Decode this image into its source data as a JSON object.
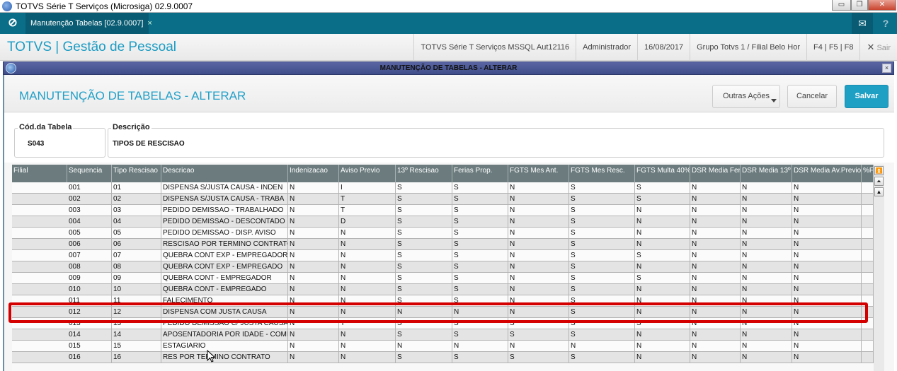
{
  "window": {
    "title": "TOTVS Série T Serviços (Microsiga) 02.9.0007",
    "minimize": "▭",
    "restore": "❐",
    "close": "✕"
  },
  "topbar": {
    "tab_label": "Manutenção Tabelas [02.9.0007]",
    "tab_close": "×",
    "mail_icon": "✉",
    "help_icon": "?",
    "home_icon": "⊘"
  },
  "header": {
    "app_title": "TOTVS | Gestão de Pessoal",
    "environment": "TOTVS Série T Serviços MSSQL Aut12116",
    "user": "Administrador",
    "date": "16/08/2017",
    "branch": "Grupo Totvs 1 / Filial Belo Hor",
    "shortcuts": "F4 | F5 | F8",
    "exit_icon": "✕",
    "exit_label": "Sair"
  },
  "dialog": {
    "title": "MANUTENÇÃO DE TABELAS - ALTERAR",
    "close": "×"
  },
  "page": {
    "title": "MANUTENÇÃO DE TABELAS - ALTERAR",
    "other_actions": "Outras Ações",
    "cancel": "Cancelar",
    "save": "Salvar"
  },
  "form": {
    "code_label": "Cód.da Tabela",
    "code_value": "S043",
    "desc_label": "Descrição",
    "desc_value": "TIPOS DE RESCISAO"
  },
  "grid": {
    "columns": [
      "Filial",
      "Sequencia",
      "Tipo Rescisao",
      "Descricao",
      "Indenizacao",
      "Aviso Previo",
      "13º Rescisao",
      "Ferias Prop.",
      "FGTS Mes Ant.",
      "FGTS Mes Resc.",
      "FGTS Multa 40%",
      "DSR Media Fer.",
      "DSR Media 13º",
      "DSR Media Av.Previo",
      "%F"
    ],
    "rows": [
      [
        "",
        "001",
        "01",
        "DISPENSA S/JUSTA CAUSA - INDEN",
        "N",
        "I",
        "S",
        "S",
        "N",
        "S",
        "S",
        "N",
        "N",
        "N",
        ""
      ],
      [
        "",
        "002",
        "02",
        "DISPENSA S/JUSTA CAUSA - TRABA",
        "N",
        "T",
        "S",
        "S",
        "N",
        "S",
        "S",
        "N",
        "N",
        "N",
        ""
      ],
      [
        "",
        "003",
        "03",
        "PEDIDO DEMISSAO - TRABALHADO",
        "N",
        "T",
        "S",
        "S",
        "N",
        "S",
        "N",
        "N",
        "N",
        "N",
        ""
      ],
      [
        "",
        "004",
        "04",
        "PEDIDO DEMISSAO - DESCONTADO",
        "N",
        "D",
        "S",
        "S",
        "N",
        "S",
        "N",
        "N",
        "N",
        "N",
        ""
      ],
      [
        "",
        "005",
        "05",
        "PEDIDO DEMISSAO - DISP. AVISO",
        "N",
        "N",
        "S",
        "S",
        "N",
        "S",
        "N",
        "N",
        "N",
        "N",
        ""
      ],
      [
        "",
        "006",
        "06",
        "RESCISAO POR TERMINO CONTRATO",
        "N",
        "N",
        "S",
        "S",
        "N",
        "S",
        "N",
        "N",
        "N",
        "N",
        ""
      ],
      [
        "",
        "007",
        "07",
        "QUEBRA CONT EXP - EMPREGADOR",
        "N",
        "N",
        "S",
        "S",
        "N",
        "S",
        "S",
        "N",
        "N",
        "N",
        ""
      ],
      [
        "",
        "008",
        "08",
        "QUEBRA CONT EXP - EMPREGADO",
        "N",
        "N",
        "S",
        "S",
        "N",
        "S",
        "N",
        "N",
        "N",
        "N",
        ""
      ],
      [
        "",
        "009",
        "09",
        "QUEBRA CONT - EMPREGADOR",
        "N",
        "N",
        "S",
        "S",
        "N",
        "S",
        "S",
        "N",
        "N",
        "N",
        ""
      ],
      [
        "",
        "010",
        "10",
        "QUEBRA CONT - EMPREGADO",
        "N",
        "N",
        "S",
        "S",
        "N",
        "S",
        "N",
        "N",
        "N",
        "N",
        ""
      ],
      [
        "",
        "011",
        "11",
        "FALECIMENTO",
        "N",
        "N",
        "S",
        "S",
        "N",
        "S",
        "N",
        "N",
        "N",
        "N",
        ""
      ],
      [
        "",
        "012",
        "12",
        "DISPENSA COM JUSTA CAUSA",
        "N",
        "N",
        "N",
        "N",
        "N",
        "S",
        "N",
        "N",
        "N",
        "N",
        ""
      ],
      [
        "",
        "013",
        "13",
        "PEDIDO DEMISSAO C/ JUSTA CAUSA",
        "N",
        "T",
        "S",
        "S",
        "S",
        "S",
        "S",
        "N",
        "N",
        "N",
        ""
      ],
      [
        "",
        "014",
        "14",
        "APOSENTADORIA POR IDADE - COMP",
        "N",
        "N",
        "S",
        "S",
        "S",
        "S",
        "N",
        "N",
        "N",
        "N",
        ""
      ],
      [
        "",
        "015",
        "15",
        "ESTAGIARIO",
        "N",
        "N",
        "N",
        "N",
        "N",
        "N",
        "N",
        "N",
        "N",
        "N",
        ""
      ],
      [
        "",
        "016",
        "16",
        "RES POR TERMINO CONTRATO",
        "N",
        "N",
        "S",
        "S",
        "S",
        "S",
        "N",
        "N",
        "N",
        "N",
        ""
      ]
    ],
    "highlighted_row": "012",
    "scroll_top": "⏫",
    "scroll_pageup": "⏶",
    "scroll_up": "▲"
  },
  "colors": {
    "teal": "#0b6e89",
    "accent": "#1e9fc4",
    "highlight": "#d40000"
  }
}
